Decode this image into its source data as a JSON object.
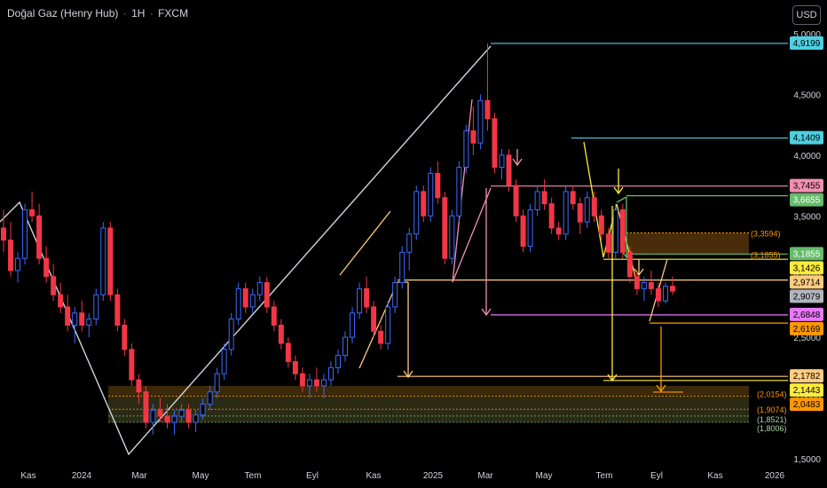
{
  "header": {
    "symbol": "Doğal Gaz (Henry Hub)",
    "interval": "1H",
    "source": "FXCM",
    "currency_button": "USD"
  },
  "colors": {
    "background": "#000000",
    "up": "#2962ff",
    "down": "#f23645",
    "cyan": "#4dd0e1",
    "pink": "#f48fb1",
    "green": "#66bb6a",
    "yellow": "#ffeb3b",
    "orange": "#ff9800",
    "light_orange": "#ffcc80",
    "gray_label": "#b2b5be",
    "white_line": "#d1d4dc"
  },
  "chart_data": {
    "type": "candlestick",
    "x_tick_labels": [
      "Kas",
      "2024",
      "Mar",
      "May",
      "Tem",
      "Eyl",
      "Kas",
      "2025",
      "Mar",
      "May",
      "Tem",
      "Eyl",
      "Kas",
      "2026"
    ],
    "y_tick_labels": [
      "5,0000",
      "4,5000",
      "4,0000",
      "3,5000",
      "3,0000",
      "2,5000",
      "2,0000",
      "1,5000"
    ],
    "y_ticks": [
      5.0,
      4.5,
      4.0,
      3.5,
      3.0,
      2.5,
      2.0,
      1.5
    ],
    "ylim": [
      1.5,
      5.0
    ],
    "price_labels": [
      {
        "text": "4,9199",
        "value": 4.9199,
        "color": "#4dd0e1"
      },
      {
        "text": "4,1409",
        "value": 4.1409,
        "color": "#4dd0e1"
      },
      {
        "text": "3,7455",
        "value": 3.7455,
        "color": "#f48fb1"
      },
      {
        "text": "3,6655",
        "value": 3.6655,
        "color": "#66bb6a"
      },
      {
        "text": "3,1855",
        "value": 3.1855,
        "color": "#66bb6a"
      },
      {
        "text": "3,1426",
        "value": 3.1426,
        "color": "#ffeb3b"
      },
      {
        "text": "2,9714",
        "value": 2.9714,
        "color": "#ffcc80"
      },
      {
        "text": "2,9079",
        "value": 2.9079,
        "color": "#b2b5be"
      },
      {
        "text": "2,6848",
        "value": 2.6848,
        "color": "#e879f9"
      },
      {
        "text": "2,6169",
        "value": 2.6169,
        "color": "#ff9800"
      },
      {
        "text": "2,1782",
        "value": 2.1782,
        "color": "#ffcc80"
      },
      {
        "text": "2,1443",
        "value": 2.1443,
        "color": "#ffeb3b"
      },
      {
        "text": "2,0483",
        "value": 2.0483,
        "color": "#ff9800"
      }
    ],
    "zone_labels": [
      {
        "text": "(3,3594)",
        "value": 3.3594
      },
      {
        "text": "(3,1855)",
        "value": 3.1855
      },
      {
        "text": "(2,0154)",
        "value": 2.0154
      },
      {
        "text": "(1,9074)",
        "value": 1.9074
      },
      {
        "text": "(1,8521)",
        "value": 1.8521
      },
      {
        "text": "(1,8006)",
        "value": 1.8006
      }
    ],
    "candles": [
      [
        3.4,
        3.55,
        3.2,
        3.3
      ],
      [
        3.3,
        3.45,
        3.0,
        3.05
      ],
      [
        3.05,
        3.2,
        2.95,
        3.15
      ],
      [
        3.15,
        3.6,
        3.1,
        3.55
      ],
      [
        3.55,
        3.7,
        3.45,
        3.5
      ],
      [
        3.5,
        3.6,
        3.1,
        3.15
      ],
      [
        3.15,
        3.25,
        2.95,
        3.0
      ],
      [
        3.0,
        3.1,
        2.8,
        2.85
      ],
      [
        2.85,
        2.95,
        2.7,
        2.75
      ],
      [
        2.75,
        2.85,
        2.55,
        2.6
      ],
      [
        2.6,
        2.75,
        2.45,
        2.7
      ],
      [
        2.7,
        2.8,
        2.55,
        2.6
      ],
      [
        2.6,
        2.7,
        2.5,
        2.65
      ],
      [
        2.65,
        2.9,
        2.6,
        2.85
      ],
      [
        2.85,
        3.45,
        2.8,
        3.4
      ],
      [
        3.4,
        3.45,
        2.8,
        2.85
      ],
      [
        2.85,
        2.9,
        2.55,
        2.6
      ],
      [
        2.6,
        2.65,
        2.35,
        2.4
      ],
      [
        2.4,
        2.45,
        2.1,
        2.15
      ],
      [
        2.15,
        2.2,
        1.95,
        2.05
      ],
      [
        2.05,
        2.1,
        1.75,
        1.8
      ],
      [
        1.8,
        1.95,
        1.7,
        1.9
      ],
      [
        1.9,
        2.0,
        1.8,
        1.85
      ],
      [
        1.85,
        1.95,
        1.75,
        1.8
      ],
      [
        1.8,
        1.9,
        1.7,
        1.85
      ],
      [
        1.85,
        1.95,
        1.8,
        1.9
      ],
      [
        1.9,
        1.95,
        1.75,
        1.8
      ],
      [
        1.8,
        1.9,
        1.72,
        1.86
      ],
      [
        1.86,
        2.0,
        1.82,
        1.95
      ],
      [
        1.95,
        2.1,
        1.9,
        2.05
      ],
      [
        2.05,
        2.25,
        2.0,
        2.2
      ],
      [
        2.2,
        2.45,
        2.15,
        2.4
      ],
      [
        2.4,
        2.7,
        2.35,
        2.65
      ],
      [
        2.65,
        2.95,
        2.6,
        2.9
      ],
      [
        2.9,
        2.95,
        2.7,
        2.75
      ],
      [
        2.75,
        2.9,
        2.7,
        2.85
      ],
      [
        2.85,
        3.0,
        2.8,
        2.95
      ],
      [
        2.95,
        3.0,
        2.7,
        2.75
      ],
      [
        2.75,
        2.8,
        2.55,
        2.6
      ],
      [
        2.6,
        2.65,
        2.4,
        2.45
      ],
      [
        2.45,
        2.5,
        2.25,
        2.3
      ],
      [
        2.3,
        2.35,
        2.15,
        2.2
      ],
      [
        2.2,
        2.25,
        2.05,
        2.1
      ],
      [
        2.1,
        2.2,
        2.0,
        2.15
      ],
      [
        2.15,
        2.25,
        2.05,
        2.1
      ],
      [
        2.1,
        2.2,
        2.0,
        2.15
      ],
      [
        2.15,
        2.3,
        2.1,
        2.25
      ],
      [
        2.25,
        2.4,
        2.2,
        2.35
      ],
      [
        2.35,
        2.55,
        2.3,
        2.5
      ],
      [
        2.5,
        2.75,
        2.45,
        2.7
      ],
      [
        2.7,
        2.95,
        2.65,
        2.9
      ],
      [
        2.9,
        3.0,
        2.7,
        2.75
      ],
      [
        2.75,
        2.8,
        2.5,
        2.55
      ],
      [
        2.55,
        2.6,
        2.4,
        2.45
      ],
      [
        2.45,
        2.8,
        2.4,
        2.75
      ],
      [
        2.75,
        3.0,
        2.7,
        2.95
      ],
      [
        2.95,
        3.25,
        2.9,
        3.2
      ],
      [
        3.2,
        3.4,
        3.05,
        3.35
      ],
      [
        3.35,
        3.75,
        3.3,
        3.7
      ],
      [
        3.7,
        3.75,
        3.45,
        3.5
      ],
      [
        3.5,
        3.9,
        3.45,
        3.85
      ],
      [
        3.85,
        3.95,
        3.6,
        3.65
      ],
      [
        3.65,
        3.7,
        3.1,
        3.15
      ],
      [
        3.15,
        3.55,
        3.1,
        3.5
      ],
      [
        3.5,
        3.95,
        3.45,
        3.9
      ],
      [
        3.9,
        4.25,
        3.85,
        4.2
      ],
      [
        4.2,
        4.4,
        4.0,
        4.1
      ],
      [
        4.1,
        4.5,
        4.05,
        4.45
      ],
      [
        4.45,
        4.92,
        4.2,
        4.3
      ],
      [
        4.3,
        4.35,
        3.85,
        3.9
      ],
      [
        3.9,
        4.05,
        3.8,
        4.0
      ],
      [
        4.0,
        4.05,
        3.7,
        3.75
      ],
      [
        3.75,
        3.8,
        3.45,
        3.5
      ],
      [
        3.5,
        3.55,
        3.2,
        3.25
      ],
      [
        3.25,
        3.6,
        3.2,
        3.55
      ],
      [
        3.55,
        3.75,
        3.5,
        3.7
      ],
      [
        3.7,
        3.8,
        3.55,
        3.6
      ],
      [
        3.6,
        3.65,
        3.35,
        3.4
      ],
      [
        3.4,
        3.45,
        3.3,
        3.35
      ],
      [
        3.35,
        3.75,
        3.3,
        3.7
      ],
      [
        3.7,
        3.75,
        3.55,
        3.6
      ],
      [
        3.6,
        3.65,
        3.35,
        3.45
      ],
      [
        3.45,
        3.7,
        3.4,
        3.65
      ],
      [
        3.65,
        3.7,
        3.45,
        3.5
      ],
      [
        3.5,
        3.55,
        3.3,
        3.35
      ],
      [
        3.35,
        3.4,
        3.15,
        3.2
      ],
      [
        3.2,
        3.6,
        3.15,
        3.55
      ],
      [
        3.55,
        3.6,
        3.15,
        3.2
      ],
      [
        3.2,
        3.25,
        2.95,
        3.0
      ],
      [
        3.0,
        3.05,
        2.85,
        2.9
      ],
      [
        2.9,
        3.0,
        2.8,
        2.95
      ],
      [
        2.95,
        3.05,
        2.85,
        2.9
      ],
      [
        2.9,
        2.95,
        2.75,
        2.8
      ],
      [
        2.8,
        2.95,
        2.78,
        2.92
      ],
      [
        2.92,
        3.0,
        2.85,
        2.88
      ]
    ]
  }
}
